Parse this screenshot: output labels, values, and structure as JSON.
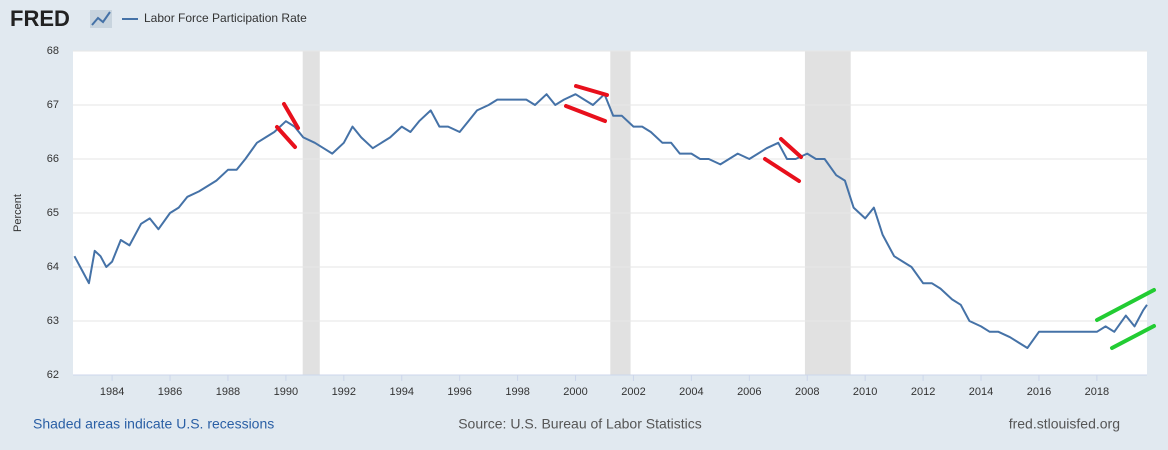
{
  "logo": "FRED",
  "chart_data": {
    "type": "line",
    "title": "Labor Force Participation Rate",
    "ylabel": "Percent",
    "note": "Shaded areas indicate U.S. recessions",
    "source": "Source: U.S. Bureau of Labor Statistics",
    "site": "fred.stlouisfed.org",
    "recessions": [
      [
        1990.58,
        1991.17
      ],
      [
        2001.2,
        2001.9
      ],
      [
        2007.92,
        2009.5
      ]
    ],
    "xlim": [
      1982.65,
      2019.73
    ],
    "xticks": [
      1984,
      1986,
      1988,
      1990,
      1992,
      1994,
      1996,
      1998,
      2000,
      2002,
      2004,
      2006,
      2008,
      2010,
      2012,
      2014,
      2016,
      2018
    ],
    "ylim": [
      62,
      68
    ],
    "yticks": [
      62,
      63,
      64,
      65,
      66,
      67,
      68
    ],
    "grid": true,
    "series": [
      {
        "name": "Labor Force Participation Rate",
        "color": "#4572a7",
        "x": [
          1982.7,
          1983.0,
          1983.2,
          1983.4,
          1983.6,
          1983.8,
          1984.0,
          1984.3,
          1984.6,
          1985.0,
          1985.3,
          1985.6,
          1986.0,
          1986.3,
          1986.6,
          1987.0,
          1987.3,
          1987.6,
          1988.0,
          1988.3,
          1988.6,
          1989.0,
          1989.3,
          1989.6,
          1990.0,
          1990.3,
          1990.6,
          1991.0,
          1991.3,
          1991.6,
          1992.0,
          1992.3,
          1992.6,
          1993.0,
          1993.3,
          1993.6,
          1994.0,
          1994.3,
          1994.6,
          1995.0,
          1995.3,
          1995.6,
          1996.0,
          1996.3,
          1996.6,
          1997.0,
          1997.3,
          1997.6,
          1998.0,
          1998.3,
          1998.6,
          1999.0,
          1999.3,
          1999.6,
          2000.0,
          2000.3,
          2000.6,
          2001.0,
          2001.3,
          2001.6,
          2002.0,
          2002.3,
          2002.6,
          2003.0,
          2003.3,
          2003.6,
          2004.0,
          2004.3,
          2004.6,
          2005.0,
          2005.3,
          2005.6,
          2006.0,
          2006.3,
          2006.6,
          2007.0,
          2007.3,
          2007.6,
          2008.0,
          2008.3,
          2008.6,
          2009.0,
          2009.3,
          2009.6,
          2010.0,
          2010.3,
          2010.6,
          2011.0,
          2011.3,
          2011.6,
          2012.0,
          2012.3,
          2012.6,
          2013.0,
          2013.3,
          2013.6,
          2014.0,
          2014.3,
          2014.6,
          2015.0,
          2015.3,
          2015.6,
          2016.0,
          2016.3,
          2016.6,
          2017.0,
          2017.3,
          2017.6,
          2018.0,
          2018.3,
          2018.6,
          2019.0,
          2019.3,
          2019.6,
          2019.73
        ],
        "values": [
          64.2,
          63.9,
          63.7,
          64.3,
          64.2,
          64.0,
          64.1,
          64.5,
          64.4,
          64.8,
          64.9,
          64.7,
          65.0,
          65.1,
          65.3,
          65.4,
          65.5,
          65.6,
          65.8,
          65.8,
          66.0,
          66.3,
          66.4,
          66.5,
          66.7,
          66.6,
          66.4,
          66.3,
          66.2,
          66.1,
          66.3,
          66.6,
          66.4,
          66.2,
          66.3,
          66.4,
          66.6,
          66.5,
          66.7,
          66.9,
          66.6,
          66.6,
          66.5,
          66.7,
          66.9,
          67.0,
          67.1,
          67.1,
          67.1,
          67.1,
          67.0,
          67.2,
          67.0,
          67.1,
          67.2,
          67.1,
          67.0,
          67.2,
          66.8,
          66.8,
          66.6,
          66.6,
          66.5,
          66.3,
          66.3,
          66.1,
          66.1,
          66.0,
          66.0,
          65.9,
          66.0,
          66.1,
          66.0,
          66.1,
          66.2,
          66.3,
          66.0,
          66.0,
          66.1,
          66.0,
          66.0,
          65.7,
          65.6,
          65.1,
          64.9,
          65.1,
          64.6,
          64.2,
          64.1,
          64.0,
          63.7,
          63.7,
          63.6,
          63.4,
          63.3,
          63.0,
          62.9,
          62.8,
          62.8,
          62.7,
          62.6,
          62.5,
          62.8,
          62.8,
          62.8,
          62.8,
          62.8,
          62.8,
          62.8,
          62.9,
          62.8,
          63.1,
          62.9,
          63.2,
          63.3
        ]
      }
    ]
  }
}
